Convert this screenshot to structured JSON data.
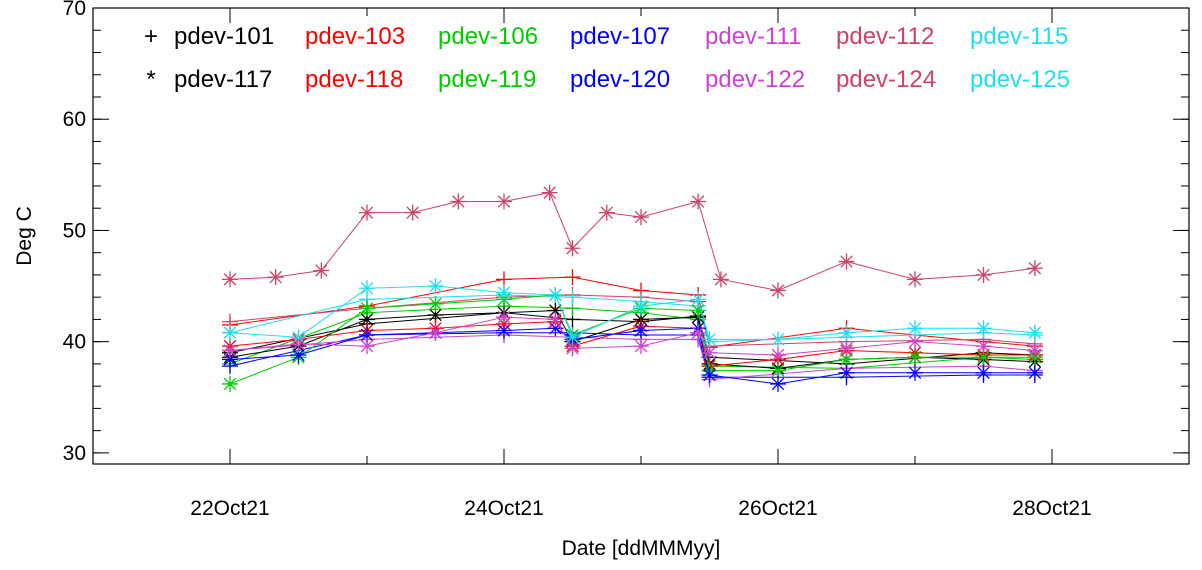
{
  "chart_data": {
    "type": "scatter",
    "xlabel": "Date [ddMMMyy]",
    "ylabel": "Deg C",
    "xlim": [
      "2021-10-21T00:00",
      "2021-10-29T00:00"
    ],
    "ylim": [
      29,
      70
    ],
    "x_ticks": [
      "22Oct21",
      "24Oct21",
      "26Oct21",
      "28Oct21"
    ],
    "y_ticks": [
      "30",
      "40",
      "50",
      "60",
      "70"
    ],
    "grid": false,
    "legend_position": "top-left",
    "series": [
      {
        "name": "pdev-101",
        "marker": "+",
        "color": "#000000",
        "x": [
          "2021-10-22T00:00",
          "2021-10-23T00:00",
          "2021-10-24T00:00",
          "2021-10-24T12:00",
          "2021-10-25T00:00",
          "2021-10-25T10:00",
          "2021-10-25T12:00",
          "2021-10-26T12:00",
          "2021-10-27T12:00",
          "2021-10-27T21:00"
        ],
        "y": [
          39.0,
          41.6,
          42.6,
          42.0,
          41.8,
          42.3,
          38.6,
          38.0,
          39.0,
          38.8
        ]
      },
      {
        "name": "pdev-103",
        "marker": "+",
        "color": "#ff0000",
        "x": [
          "2021-10-22T00:00",
          "2021-10-23T00:00",
          "2021-10-24T00:00",
          "2021-10-24T12:00",
          "2021-10-25T00:00",
          "2021-10-25T10:00",
          "2021-10-25T12:00",
          "2021-10-26T12:00",
          "2021-10-27T12:00",
          "2021-10-27T21:00"
        ],
        "y": [
          41.5,
          43.2,
          45.6,
          45.8,
          44.6,
          44.2,
          39.5,
          41.2,
          40.0,
          39.6
        ]
      },
      {
        "name": "pdev-106",
        "marker": "+",
        "color": "#00cc00",
        "x": [
          "2021-10-22T00:00",
          "2021-10-23T00:00",
          "2021-10-24T00:00",
          "2021-10-24T12:00",
          "2021-10-25T00:00",
          "2021-10-25T10:00",
          "2021-10-25T12:00",
          "2021-10-26T12:00",
          "2021-10-27T12:00",
          "2021-10-27T21:00"
        ],
        "y": [
          38.0,
          42.6,
          43.2,
          43.0,
          42.6,
          42.0,
          37.8,
          37.6,
          38.6,
          38.4
        ]
      },
      {
        "name": "pdev-107",
        "marker": "+",
        "color": "#0000ff",
        "x": [
          "2021-10-22T00:00",
          "2021-10-23T00:00",
          "2021-10-24T00:00",
          "2021-10-24T12:00",
          "2021-10-25T00:00",
          "2021-10-25T10:00",
          "2021-10-25T12:00",
          "2021-10-26T12:00",
          "2021-10-27T12:00",
          "2021-10-27T21:00"
        ],
        "y": [
          37.8,
          40.6,
          40.8,
          40.8,
          40.6,
          40.6,
          36.8,
          36.8,
          37.0,
          37.0
        ]
      },
      {
        "name": "pdev-111",
        "marker": "+",
        "color": "#cc44cc",
        "x": [
          "2021-10-22T00:00",
          "2021-10-23T00:00",
          "2021-10-24T00:00",
          "2021-10-24T12:00",
          "2021-10-25T00:00",
          "2021-10-25T10:00",
          "2021-10-25T12:00",
          "2021-10-26T12:00",
          "2021-10-27T12:00",
          "2021-10-27T21:00"
        ],
        "y": [
          39.2,
          40.2,
          40.6,
          40.4,
          40.2,
          40.2,
          36.6,
          37.6,
          37.8,
          37.4
        ]
      },
      {
        "name": "pdev-112",
        "marker": "+",
        "color": "#cc4466",
        "x": [
          "2021-10-22T00:00",
          "2021-10-23T00:00",
          "2021-10-24T00:00",
          "2021-10-24T12:00",
          "2021-10-25T00:00",
          "2021-10-25T10:00",
          "2021-10-25T12:00",
          "2021-10-26T12:00",
          "2021-10-27T12:00",
          "2021-10-27T21:00"
        ],
        "y": [
          41.8,
          43.0,
          44.0,
          44.2,
          44.0,
          43.6,
          39.6,
          40.0,
          40.2,
          39.8
        ]
      },
      {
        "name": "pdev-115",
        "marker": "+",
        "color": "#22ddee",
        "x": [
          "2021-10-22T00:00",
          "2021-10-23T00:00",
          "2021-10-24T00:00",
          "2021-10-24T12:00",
          "2021-10-25T00:00",
          "2021-10-25T10:00",
          "2021-10-25T12:00",
          "2021-10-26T12:00",
          "2021-10-27T12:00",
          "2021-10-27T21:00"
        ],
        "y": [
          40.8,
          43.8,
          44.2,
          44.0,
          43.6,
          43.2,
          40.0,
          40.4,
          40.8,
          40.6
        ]
      },
      {
        "name": "pdev-117",
        "marker": "*",
        "color": "#000000",
        "x": [
          "2021-10-22T00:00",
          "2021-10-22T12:00",
          "2021-10-23T00:00",
          "2021-10-23T12:00",
          "2021-10-24T00:00",
          "2021-10-24T09:00",
          "2021-10-24T12:00",
          "2021-10-25T00:00",
          "2021-10-25T10:00",
          "2021-10-25T12:00",
          "2021-10-26T00:00",
          "2021-10-26T12:00",
          "2021-10-27T00:00",
          "2021-10-27T12:00",
          "2021-10-27T21:00"
        ],
        "y": [
          38.6,
          39.6,
          42.0,
          42.4,
          42.6,
          42.8,
          40.0,
          42.0,
          42.2,
          38.0,
          37.6,
          38.4,
          38.6,
          38.4,
          38.2
        ]
      },
      {
        "name": "pdev-118",
        "marker": "*",
        "color": "#ff0000",
        "x": [
          "2021-10-22T00:00",
          "2021-10-22T12:00",
          "2021-10-23T00:00",
          "2021-10-23T12:00",
          "2021-10-24T00:00",
          "2021-10-24T09:00",
          "2021-10-24T12:00",
          "2021-10-25T00:00",
          "2021-10-25T10:00",
          "2021-10-25T12:00",
          "2021-10-26T00:00",
          "2021-10-26T12:00",
          "2021-10-27T00:00",
          "2021-10-27T12:00",
          "2021-10-27T21:00"
        ],
        "y": [
          39.6,
          40.2,
          41.0,
          41.2,
          41.6,
          41.8,
          39.6,
          41.4,
          41.2,
          37.8,
          38.4,
          39.2,
          39.0,
          38.8,
          38.8
        ]
      },
      {
        "name": "pdev-119",
        "marker": "*",
        "color": "#00cc00",
        "x": [
          "2021-10-22T00:00",
          "2021-10-22T12:00",
          "2021-10-23T00:00",
          "2021-10-23T12:00",
          "2021-10-24T00:00",
          "2021-10-24T09:00",
          "2021-10-24T12:00",
          "2021-10-25T00:00",
          "2021-10-25T10:00",
          "2021-10-25T12:00",
          "2021-10-26T00:00",
          "2021-10-26T12:00",
          "2021-10-27T00:00",
          "2021-10-27T12:00",
          "2021-10-27T21:00"
        ],
        "y": [
          36.2,
          38.6,
          43.0,
          43.4,
          43.8,
          44.2,
          40.6,
          43.0,
          42.8,
          37.4,
          37.4,
          38.4,
          38.6,
          38.6,
          38.6
        ]
      },
      {
        "name": "pdev-120",
        "marker": "*",
        "color": "#0000ff",
        "x": [
          "2021-10-22T00:00",
          "2021-10-22T12:00",
          "2021-10-23T00:00",
          "2021-10-23T12:00",
          "2021-10-24T00:00",
          "2021-10-24T09:00",
          "2021-10-24T12:00",
          "2021-10-25T00:00",
          "2021-10-25T10:00",
          "2021-10-25T12:00",
          "2021-10-26T00:00",
          "2021-10-26T12:00",
          "2021-10-27T00:00",
          "2021-10-27T12:00",
          "2021-10-27T21:00"
        ],
        "y": [
          38.4,
          38.8,
          40.6,
          40.8,
          41.0,
          41.2,
          40.2,
          41.0,
          41.2,
          37.0,
          36.2,
          37.2,
          37.2,
          37.2,
          37.2
        ]
      },
      {
        "name": "pdev-122",
        "marker": "*",
        "color": "#cc44cc",
        "x": [
          "2021-10-22T00:00",
          "2021-10-22T12:00",
          "2021-10-23T00:00",
          "2021-10-23T12:00",
          "2021-10-24T00:00",
          "2021-10-24T09:00",
          "2021-10-24T12:00",
          "2021-10-25T00:00",
          "2021-10-25T10:00",
          "2021-10-25T12:00",
          "2021-10-26T00:00",
          "2021-10-26T12:00",
          "2021-10-27T00:00",
          "2021-10-27T12:00",
          "2021-10-27T21:00"
        ],
        "y": [
          39.2,
          39.8,
          39.6,
          40.8,
          42.2,
          42.0,
          39.4,
          39.6,
          40.8,
          39.0,
          38.8,
          39.4,
          40.0,
          39.6,
          39.2
        ]
      },
      {
        "name": "pdev-124",
        "marker": "*",
        "color": "#cc4466",
        "x": [
          "2021-10-22T00:00",
          "2021-10-22T08:00",
          "2021-10-22T16:00",
          "2021-10-23T00:00",
          "2021-10-23T08:00",
          "2021-10-23T16:00",
          "2021-10-24T00:00",
          "2021-10-24T08:00",
          "2021-10-24T12:00",
          "2021-10-24T18:00",
          "2021-10-25T00:00",
          "2021-10-25T10:00",
          "2021-10-25T14:00",
          "2021-10-26T00:00",
          "2021-10-26T12:00",
          "2021-10-27T00:00",
          "2021-10-27T12:00",
          "2021-10-27T21:00"
        ],
        "y": [
          45.6,
          45.8,
          46.4,
          51.6,
          51.6,
          52.6,
          52.6,
          53.4,
          48.4,
          51.6,
          51.2,
          52.6,
          45.6,
          44.6,
          47.2,
          45.6,
          46.0,
          46.6
        ]
      },
      {
        "name": "pdev-125",
        "marker": "*",
        "color": "#22ddee",
        "x": [
          "2021-10-22T00:00",
          "2021-10-22T12:00",
          "2021-10-23T00:00",
          "2021-10-23T12:00",
          "2021-10-24T00:00",
          "2021-10-24T09:00",
          "2021-10-24T12:00",
          "2021-10-25T00:00",
          "2021-10-25T10:00",
          "2021-10-25T12:00",
          "2021-10-26T00:00",
          "2021-10-26T12:00",
          "2021-10-27T00:00",
          "2021-10-27T12:00",
          "2021-10-27T21:00"
        ],
        "y": [
          40.8,
          40.4,
          44.8,
          45.0,
          44.4,
          44.2,
          40.4,
          43.2,
          43.8,
          40.2,
          40.2,
          40.8,
          41.2,
          41.2,
          40.8
        ]
      }
    ]
  }
}
